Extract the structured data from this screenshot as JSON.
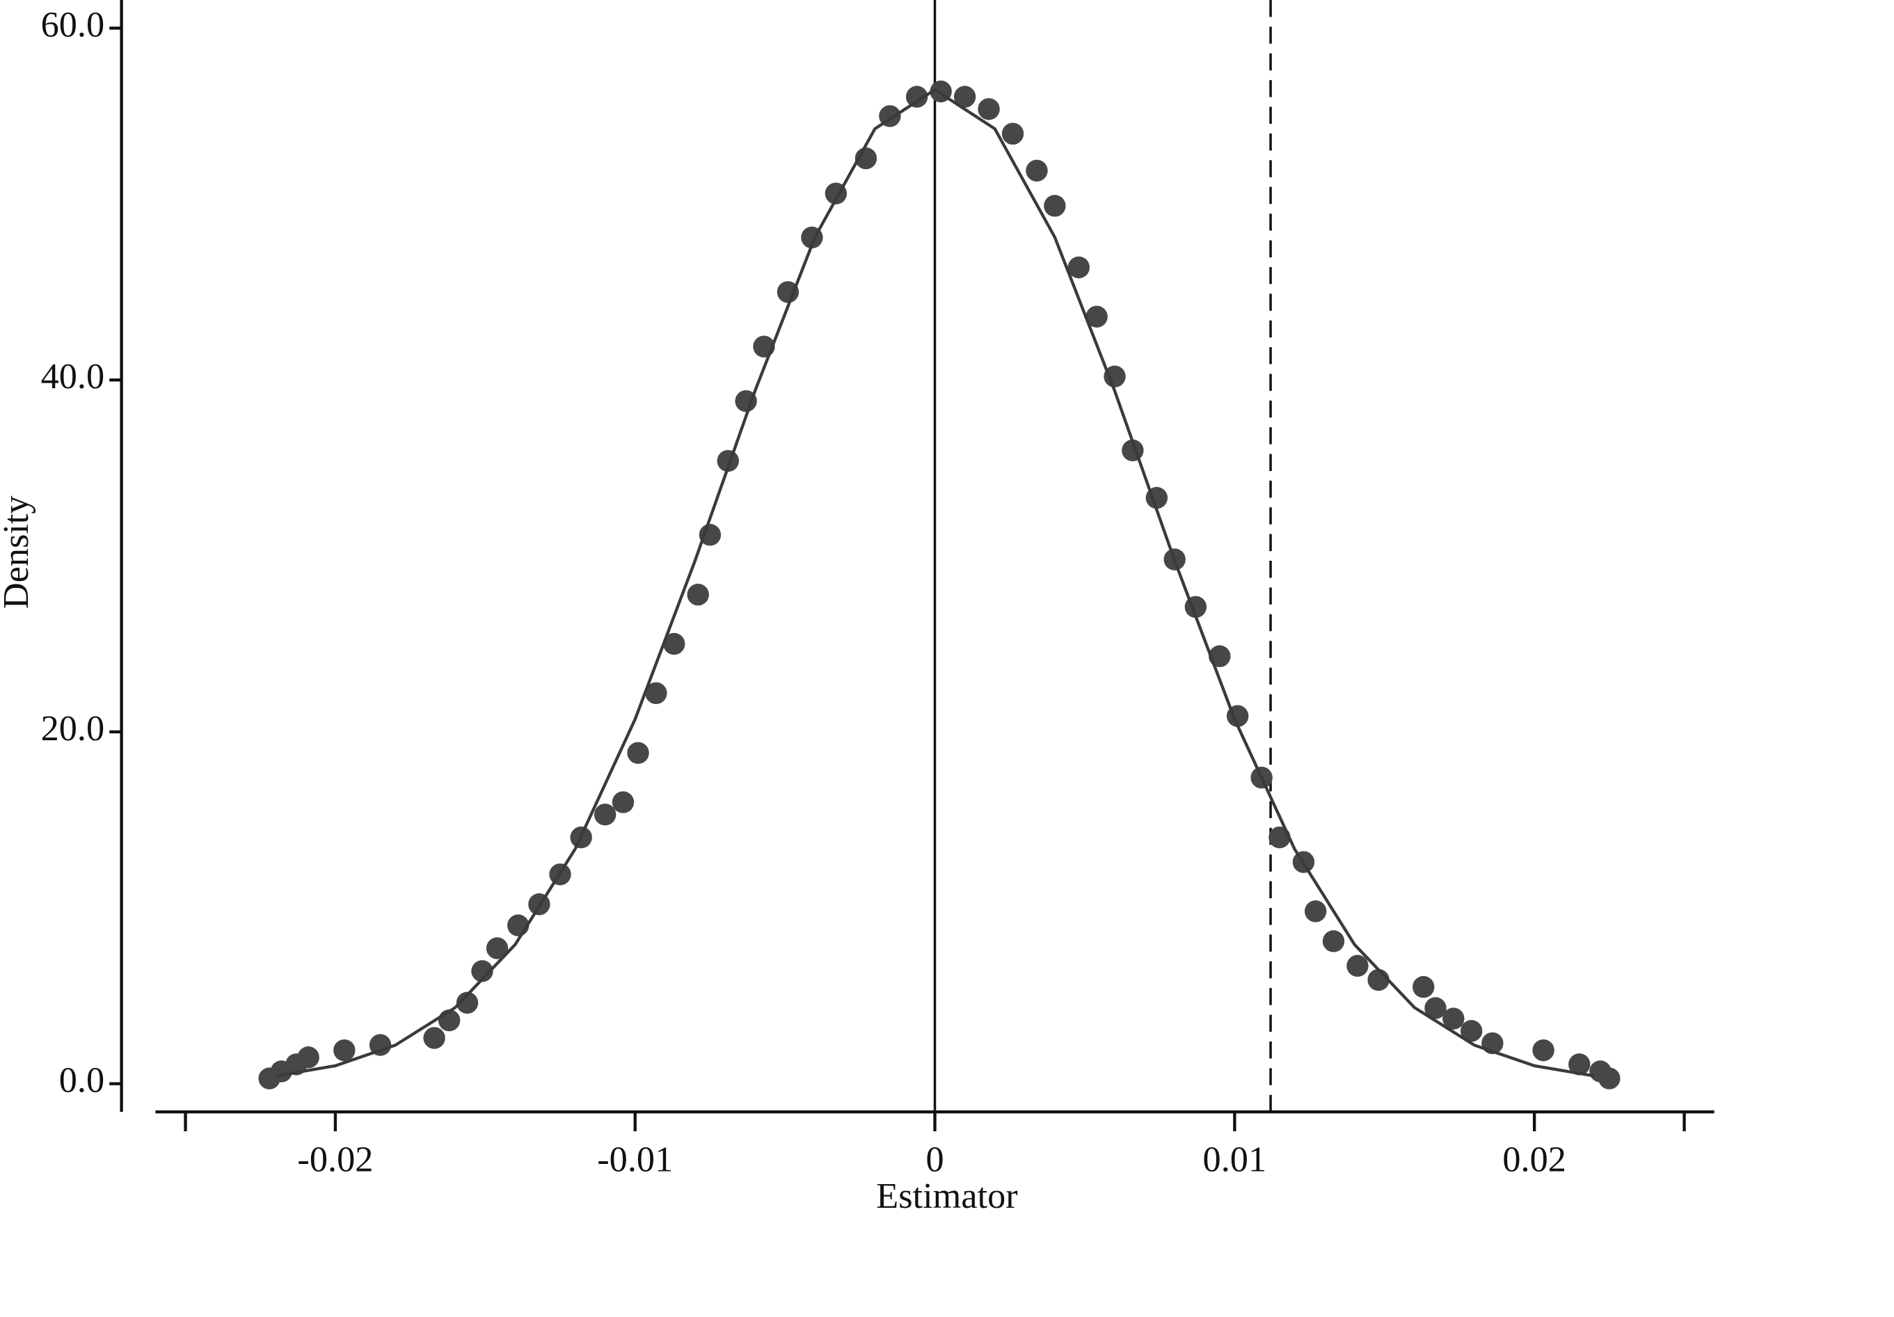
{
  "chart_data": {
    "type": "scatter",
    "x_label": "Estimator",
    "y_label": "Density",
    "xlim": [
      -0.026,
      0.026
    ],
    "ylim": [
      -1.6,
      61.6
    ],
    "xticks": [
      {
        "value": -0.025,
        "label": null
      },
      -0.02,
      -0.01,
      0,
      0.01,
      0.02,
      {
        "value": 0.025,
        "label": null
      }
    ],
    "yticks": [
      {
        "value": 0,
        "label": "0.0"
      },
      {
        "value": 20,
        "label": "20.0"
      },
      {
        "value": 40,
        "label": "40.0"
      },
      {
        "value": 60,
        "label": "60.0"
      }
    ],
    "vlines": [
      {
        "x": 0,
        "style": "solid"
      },
      {
        "x": 0.0112,
        "style": "dashed"
      }
    ],
    "series": [
      {
        "type": "scatter",
        "color": "#474747",
        "x": [
          -0.0222,
          -0.0218,
          -0.0213,
          -0.0209,
          -0.0197,
          -0.0185,
          -0.0167,
          -0.0162,
          -0.0156,
          -0.0151,
          -0.0146,
          -0.0139,
          -0.0132,
          -0.0125,
          -0.0118,
          -0.011,
          -0.0104,
          -0.0099,
          -0.0093,
          -0.0087,
          -0.0079,
          -0.0075,
          -0.0069,
          -0.0063,
          -0.0057,
          -0.0049,
          -0.0041,
          -0.0033,
          -0.0023,
          -0.0015,
          -0.0006,
          0.0002,
          0.001,
          0.0018,
          0.0026,
          0.0034,
          0.004,
          0.0048,
          0.0054,
          0.006,
          0.0066,
          0.0074,
          0.008,
          0.0087,
          0.0095,
          0.0101,
          0.0109,
          0.0115,
          0.0123,
          0.0127,
          0.0133,
          0.0141,
          0.0148,
          0.0163,
          0.0167,
          0.0173,
          0.0179,
          0.0186,
          0.0203,
          0.0215,
          0.0222,
          0.0225
        ],
        "values": [
          0.3,
          0.7,
          1.1,
          1.5,
          1.9,
          2.2,
          2.6,
          3.6,
          4.6,
          6.4,
          7.7,
          9.0,
          10.2,
          11.9,
          14.0,
          15.3,
          16.0,
          18.8,
          22.2,
          25.0,
          27.8,
          31.2,
          35.4,
          38.8,
          41.9,
          45.0,
          48.1,
          50.6,
          52.6,
          55.0,
          56.1,
          56.4,
          56.1,
          55.4,
          54.0,
          51.9,
          49.9,
          46.4,
          43.6,
          40.2,
          36.0,
          33.3,
          29.8,
          27.1,
          24.3,
          20.9,
          17.4,
          14.0,
          12.6,
          9.8,
          8.1,
          6.7,
          5.9,
          5.5,
          4.3,
          3.7,
          3.0,
          2.3,
          1.9,
          1.1,
          0.7,
          0.3
        ]
      },
      {
        "type": "line",
        "color": "#3a3a3a",
        "x": [
          -0.022,
          -0.02,
          -0.018,
          -0.016,
          -0.014,
          -0.012,
          -0.01,
          -0.008,
          -0.006,
          -0.004,
          -0.002,
          0,
          0.002,
          0.004,
          0.006,
          0.008,
          0.01,
          0.012,
          0.014,
          0.016,
          0.018,
          0.02,
          0.022
        ],
        "values": [
          0.44,
          1.02,
          2.19,
          4.33,
          7.91,
          13.34,
          20.72,
          29.73,
          39.38,
          48.12,
          54.28,
          56.5,
          54.28,
          48.12,
          39.38,
          29.73,
          20.72,
          13.34,
          7.91,
          4.33,
          2.19,
          1.02,
          0.44
        ]
      }
    ]
  }
}
